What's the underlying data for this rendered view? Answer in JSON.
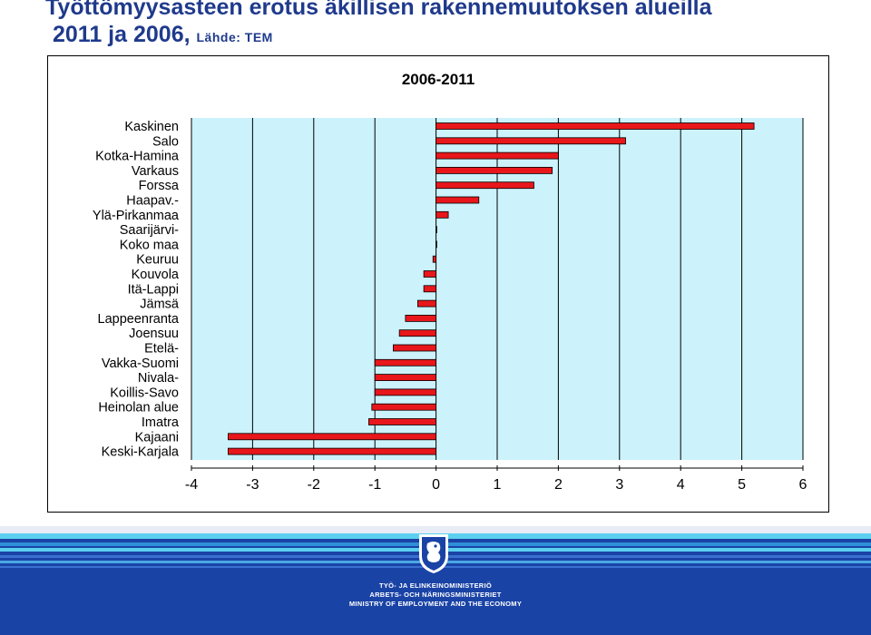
{
  "slide": {
    "title": "Työttömyysasteen erotus äkillisen rakennemuutoksen alueilla",
    "subtitle": "2011 ja 2006,",
    "source": "Lähde: TEM"
  },
  "chart_data": {
    "type": "bar",
    "orientation": "horizontal",
    "title": "2006-2011",
    "categories": [
      "Kaskinen",
      "Salo",
      "Kotka-Hamina",
      "Varkaus",
      "Forssa",
      "Haapav.-",
      "Ylä-Pirkanmaa",
      "Saarijärvi-",
      "Koko maa",
      "Keuruu",
      "Kouvola",
      "Itä-Lappi",
      "Jämsä",
      "Lappeenranta",
      "Joensuu",
      "Etelä-",
      "Vakka-Suomi",
      "Nivala-",
      "Koillis-Savo",
      "Heinolan alue",
      "Imatra",
      "Kajaani",
      "Keski-Karjala"
    ],
    "values": [
      5.2,
      3.1,
      2.0,
      1.9,
      1.6,
      0.7,
      0.2,
      0.0,
      0.0,
      -0.05,
      -0.2,
      -0.2,
      -0.3,
      -0.5,
      -0.6,
      -0.7,
      -1.0,
      -1.0,
      -1.0,
      -1.05,
      -1.1,
      -3.4,
      -3.4
    ],
    "xlim": [
      -4,
      6
    ],
    "xticks": [
      "-4",
      "-3",
      "-2",
      "-1",
      "0",
      "1",
      "2",
      "3",
      "4",
      "5",
      "6"
    ],
    "grid": true,
    "bar_color": "#e8171b",
    "plot_background": "#ccf2fc"
  },
  "footer": {
    "line1": "TYÖ- JA ELINKEINOMINISTERIÖ",
    "line2": "ARBETS- OCH NÄRINGSMINISTERIET",
    "line3": "MINISTRY OF EMPLOYMENT AND THE ECONOMY",
    "logo": "lion-coat-of-arms",
    "background": "#1a43a6"
  }
}
